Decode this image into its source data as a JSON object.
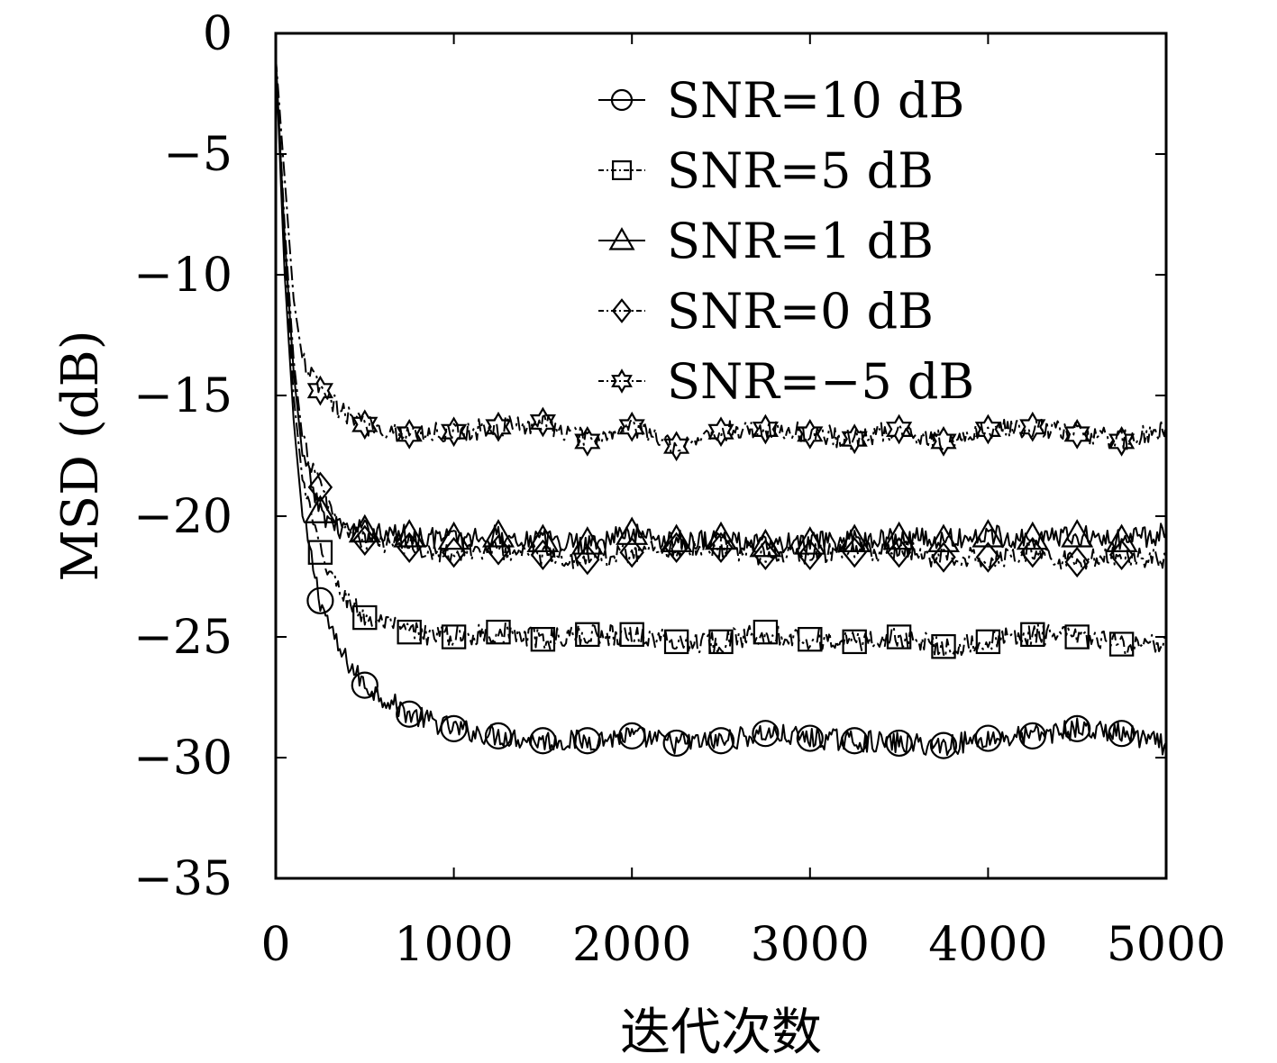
{
  "chart_data": {
    "type": "line",
    "title": "",
    "xlabel": "迭代次数",
    "ylabel": "MSD (dB)",
    "xlim": [
      0,
      5000
    ],
    "ylim": [
      -35,
      0
    ],
    "xticks": [
      0,
      1000,
      2000,
      3000,
      4000,
      5000
    ],
    "yticks": [
      0,
      -5,
      -10,
      -15,
      -20,
      -25,
      -30,
      -35
    ],
    "xtick_labels": [
      "0",
      "1000",
      "2000",
      "3000",
      "4000",
      "5000"
    ],
    "ytick_labels": [
      "0",
      "−5",
      "−10",
      "−15",
      "−20",
      "−25",
      "−30",
      "−35"
    ],
    "grid": false,
    "legend_position": "top-right",
    "color": "#000000",
    "marker_interval": 250,
    "series": [
      {
        "name": "SNR=10 dB",
        "marker": "circle",
        "line_style": "solid",
        "x": [
          0,
          50,
          100,
          150,
          250,
          350,
          500,
          750,
          1000,
          1250,
          1500,
          1750,
          2000,
          2250,
          2500,
          2750,
          3000,
          3250,
          3500,
          3750,
          4000,
          4250,
          4500,
          4750,
          5000
        ],
        "y": [
          -1,
          -10,
          -16,
          -20,
          -23.5,
          -25.5,
          -27,
          -28.2,
          -28.8,
          -29.1,
          -29.3,
          -29.3,
          -29.1,
          -29.4,
          -29.3,
          -29.0,
          -29.2,
          -29.3,
          -29.4,
          -29.5,
          -29.2,
          -29.1,
          -28.8,
          -29.0,
          -29.5
        ]
      },
      {
        "name": "SNR=5 dB",
        "marker": "square",
        "line_style": "dashdot",
        "x": [
          0,
          50,
          100,
          150,
          250,
          350,
          500,
          750,
          1000,
          1250,
          1500,
          1750,
          2000,
          2250,
          2500,
          2750,
          3000,
          3250,
          3500,
          3750,
          4000,
          4250,
          4500,
          4750,
          5000
        ],
        "y": [
          -1,
          -9,
          -15,
          -18.5,
          -21.5,
          -23,
          -24.2,
          -24.8,
          -25.0,
          -24.8,
          -25.1,
          -24.9,
          -24.9,
          -25.2,
          -25.2,
          -24.8,
          -25.1,
          -25.2,
          -25.0,
          -25.4,
          -25.2,
          -24.9,
          -25.0,
          -25.3,
          -25.4
        ]
      },
      {
        "name": "SNR=1 dB",
        "marker": "triangle",
        "line_style": "solid",
        "x": [
          0,
          50,
          100,
          150,
          250,
          350,
          500,
          750,
          1000,
          1250,
          1500,
          1750,
          2000,
          2250,
          2500,
          2750,
          3000,
          3250,
          3500,
          3750,
          4000,
          4250,
          4500,
          4750,
          5000
        ],
        "y": [
          -1,
          -8.5,
          -14,
          -17.5,
          -19.8,
          -20.5,
          -20.6,
          -20.8,
          -20.9,
          -20.8,
          -21.0,
          -21.1,
          -20.7,
          -21.0,
          -20.9,
          -21.2,
          -21.1,
          -21.0,
          -20.9,
          -21.0,
          -20.8,
          -20.9,
          -20.8,
          -21.0,
          -20.7
        ]
      },
      {
        "name": "SNR=0 dB",
        "marker": "diamond",
        "line_style": "dashdot",
        "x": [
          0,
          50,
          100,
          150,
          250,
          350,
          500,
          750,
          1000,
          1250,
          1500,
          1750,
          2000,
          2250,
          2500,
          2750,
          3000,
          3250,
          3500,
          3750,
          4000,
          4250,
          4500,
          4750,
          5000
        ],
        "y": [
          -1,
          -8,
          -13.5,
          -16.8,
          -18.8,
          -20.3,
          -21.0,
          -21.3,
          -21.5,
          -21.4,
          -21.6,
          -21.8,
          -21.5,
          -21.3,
          -21.3,
          -21.6,
          -21.6,
          -21.5,
          -21.5,
          -21.7,
          -21.7,
          -21.5,
          -21.9,
          -21.6,
          -21.8
        ]
      },
      {
        "name": "SNR=−5 dB",
        "marker": "star",
        "line_style": "dashdot",
        "x": [
          0,
          50,
          100,
          150,
          250,
          350,
          500,
          750,
          1000,
          1250,
          1500,
          1750,
          2000,
          2250,
          2500,
          2750,
          3000,
          3250,
          3500,
          3750,
          4000,
          4250,
          4500,
          4750,
          5000
        ],
        "y": [
          -1,
          -6,
          -11,
          -13.5,
          -14.8,
          -15.6,
          -16.2,
          -16.6,
          -16.5,
          -16.3,
          -16.1,
          -16.9,
          -16.3,
          -17.1,
          -16.5,
          -16.4,
          -16.6,
          -16.8,
          -16.4,
          -16.9,
          -16.4,
          -16.3,
          -16.6,
          -16.9,
          -16.4
        ]
      }
    ]
  }
}
